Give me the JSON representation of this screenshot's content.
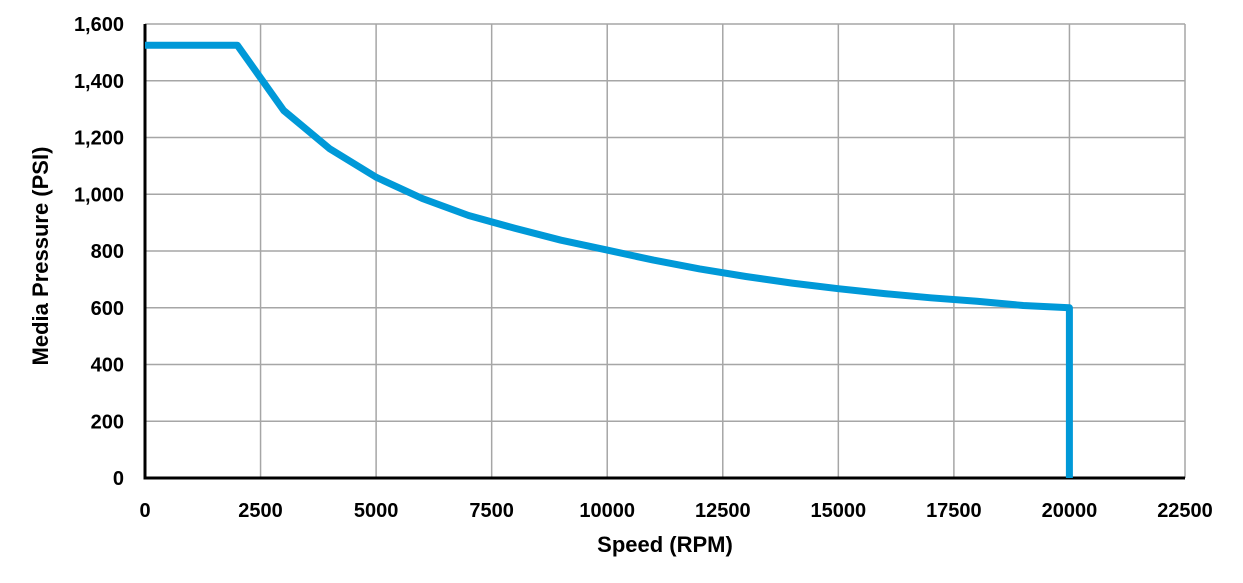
{
  "chart_data": {
    "type": "line",
    "title": "",
    "xlabel": "Speed (RPM)",
    "ylabel": "Media Pressure (PSI)",
    "xlim": [
      0,
      22500
    ],
    "ylim": [
      0,
      1600
    ],
    "x_ticks": [
      "0",
      "2500",
      "5000",
      "7500",
      "10000",
      "12500",
      "15000",
      "17500",
      "20000",
      "22500"
    ],
    "x_tick_values": [
      0,
      2500,
      5000,
      7500,
      10000,
      12500,
      15000,
      17500,
      20000,
      22500
    ],
    "y_ticks": [
      "0",
      "200",
      "400",
      "600",
      "800",
      "1,000",
      "1,200",
      "1,400",
      "1,600"
    ],
    "y_tick_values": [
      0,
      200,
      400,
      600,
      800,
      1000,
      1200,
      1400,
      1600
    ],
    "grid": true,
    "legend": "none",
    "series": [
      {
        "color": "#0099d8",
        "points": [
          [
            0,
            1525
          ],
          [
            2000,
            1525
          ],
          [
            3000,
            1295
          ],
          [
            4000,
            1160
          ],
          [
            5000,
            1060
          ],
          [
            6000,
            985
          ],
          [
            7000,
            925
          ],
          [
            8000,
            880
          ],
          [
            9000,
            838
          ],
          [
            10000,
            803
          ],
          [
            11000,
            768
          ],
          [
            12000,
            737
          ],
          [
            13000,
            710
          ],
          [
            14000,
            687
          ],
          [
            15000,
            667
          ],
          [
            16000,
            650
          ],
          [
            17000,
            635
          ],
          [
            18000,
            623
          ],
          [
            19000,
            608
          ],
          [
            20000,
            600
          ],
          [
            20000,
            0
          ]
        ]
      }
    ]
  }
}
